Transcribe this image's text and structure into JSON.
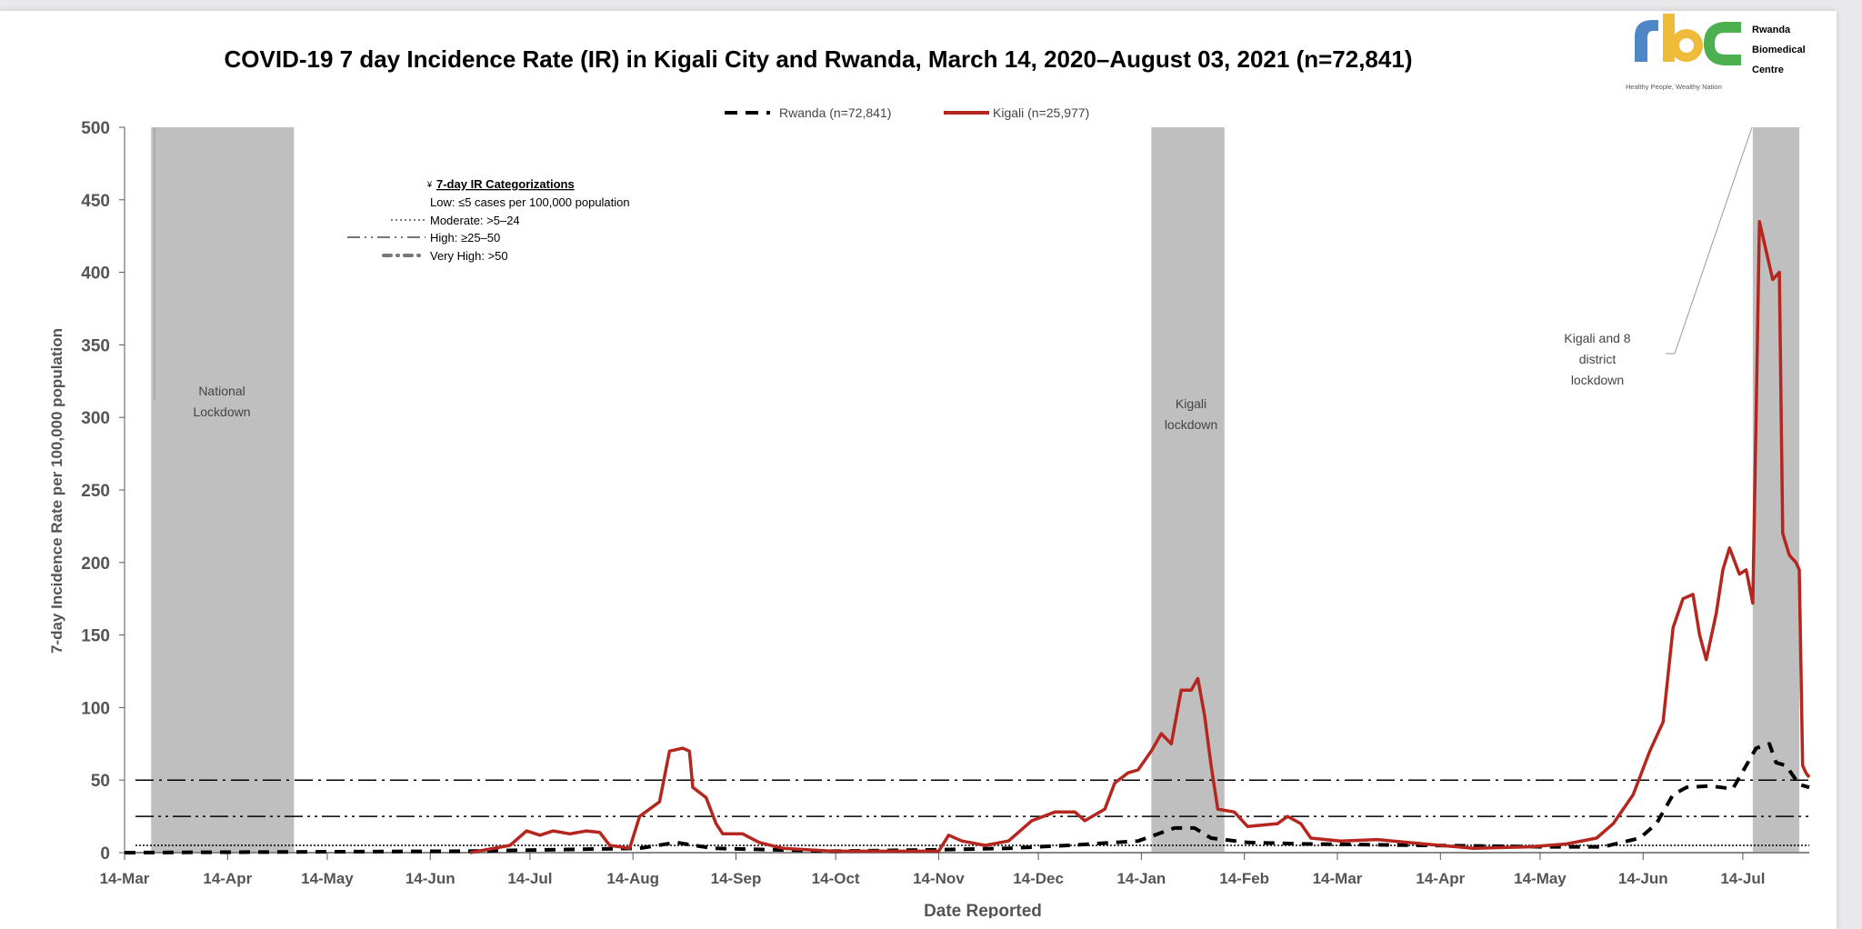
{
  "logo": {
    "letters": "rbc",
    "org_line1": "Rwanda",
    "org_line2": "Biomedical",
    "org_line3": "Centre",
    "tagline": "Healthy People, Wealthy Nation",
    "colors": {
      "r": "#4f86c6",
      "b": "#eebb3a",
      "c": "#4caf50"
    }
  },
  "chart_data": {
    "type": "line",
    "title": "COVID-19 7 day Incidence Rate (IR) in Kigali City and Rwanda, March 14, 2020–August 03, 2021 (n=72,841)",
    "xlabel": "Date Reported",
    "ylabel": "7-day Incidence Rate per 100,000 population",
    "x_units": "days since 14-Mar-2020",
    "xlim": [
      0,
      507
    ],
    "ylim": [
      0,
      500
    ],
    "yticks": [
      0,
      50,
      100,
      150,
      200,
      250,
      300,
      350,
      400,
      450,
      500
    ],
    "xticks": [
      {
        "label": "14-Mar",
        "day": 0
      },
      {
        "label": "14-Apr",
        "day": 31
      },
      {
        "label": "14-May",
        "day": 61
      },
      {
        "label": "14-Jun",
        "day": 92
      },
      {
        "label": "14-Jul",
        "day": 122
      },
      {
        "label": "14-Aug",
        "day": 153
      },
      {
        "label": "14-Sep",
        "day": 184
      },
      {
        "label": "14-Oct",
        "day": 214
      },
      {
        "label": "14-Nov",
        "day": 245
      },
      {
        "label": "14-Dec",
        "day": 275
      },
      {
        "label": "14-Jan",
        "day": 306
      },
      {
        "label": "14-Feb",
        "day": 337
      },
      {
        "label": "14-Mar",
        "day": 365
      },
      {
        "label": "14-Apr",
        "day": 396
      },
      {
        "label": "14-May",
        "day": 426
      },
      {
        "label": "14-Jun",
        "day": 457
      },
      {
        "label": "14-Jul",
        "day": 487
      }
    ],
    "legend": "top-center",
    "series": [
      {
        "name": "Rwanda (n=72,841)",
        "color": "#000000",
        "style": "dashed",
        "points": [
          [
            0,
            0
          ],
          [
            102,
            1
          ],
          [
            155,
            3
          ],
          [
            166,
            7
          ],
          [
            177,
            3
          ],
          [
            213,
            1
          ],
          [
            245,
            2
          ],
          [
            266,
            3
          ],
          [
            284,
            5
          ],
          [
            305,
            8
          ],
          [
            316,
            17
          ],
          [
            322,
            17
          ],
          [
            327,
            10
          ],
          [
            338,
            7
          ],
          [
            355,
            6
          ],
          [
            391,
            5
          ],
          [
            427,
            4
          ],
          [
            445,
            4
          ],
          [
            456,
            10
          ],
          [
            461,
            20
          ],
          [
            466,
            40
          ],
          [
            470,
            45
          ],
          [
            477,
            46
          ],
          [
            484,
            44
          ],
          [
            488,
            60
          ],
          [
            491,
            72
          ],
          [
            495,
            75
          ],
          [
            497,
            62
          ],
          [
            500,
            60
          ],
          [
            504,
            47
          ],
          [
            507,
            45
          ]
        ]
      },
      {
        "name": "Kigali (n=25,977)",
        "color": "#b5261e",
        "style": "solid",
        "points": [
          [
            104,
            0
          ],
          [
            116,
            5
          ],
          [
            121,
            15
          ],
          [
            125,
            12
          ],
          [
            129,
            15
          ],
          [
            134,
            13
          ],
          [
            139,
            15
          ],
          [
            143,
            14
          ],
          [
            146,
            5
          ],
          [
            152,
            3
          ],
          [
            155,
            25
          ],
          [
            161,
            35
          ],
          [
            164,
            70
          ],
          [
            168,
            72
          ],
          [
            170,
            70
          ],
          [
            171,
            45
          ],
          [
            175,
            38
          ],
          [
            178,
            20
          ],
          [
            180,
            13
          ],
          [
            186,
            13
          ],
          [
            191,
            7
          ],
          [
            198,
            3
          ],
          [
            213,
            1
          ],
          [
            234,
            1
          ],
          [
            245,
            1
          ],
          [
            248,
            12
          ],
          [
            252,
            8
          ],
          [
            259,
            5
          ],
          [
            266,
            8
          ],
          [
            273,
            22
          ],
          [
            280,
            28
          ],
          [
            286,
            28
          ],
          [
            289,
            22
          ],
          [
            295,
            30
          ],
          [
            298,
            48
          ],
          [
            302,
            55
          ],
          [
            305,
            57
          ],
          [
            309,
            70
          ],
          [
            312,
            82
          ],
          [
            315,
            75
          ],
          [
            318,
            112
          ],
          [
            321,
            112
          ],
          [
            323,
            120
          ],
          [
            325,
            95
          ],
          [
            327,
            60
          ],
          [
            329,
            30
          ],
          [
            334,
            28
          ],
          [
            338,
            18
          ],
          [
            347,
            20
          ],
          [
            350,
            25
          ],
          [
            354,
            20
          ],
          [
            357,
            10
          ],
          [
            366,
            8
          ],
          [
            377,
            9
          ],
          [
            391,
            6
          ],
          [
            406,
            3
          ],
          [
            423,
            4
          ],
          [
            434,
            6
          ],
          [
            443,
            10
          ],
          [
            448,
            20
          ],
          [
            454,
            40
          ],
          [
            459,
            70
          ],
          [
            463,
            90
          ],
          [
            466,
            155
          ],
          [
            469,
            175
          ],
          [
            472,
            178
          ],
          [
            474,
            150
          ],
          [
            476,
            133
          ],
          [
            479,
            165
          ],
          [
            481,
            195
          ],
          [
            483,
            210
          ],
          [
            486,
            192
          ],
          [
            488,
            195
          ],
          [
            490,
            172
          ],
          [
            491,
            300
          ],
          [
            492,
            435
          ],
          [
            494,
            415
          ],
          [
            496,
            395
          ],
          [
            498,
            400
          ],
          [
            499,
            220
          ],
          [
            501,
            205
          ],
          [
            503,
            200
          ],
          [
            504,
            195
          ],
          [
            505,
            60
          ],
          [
            506,
            55
          ],
          [
            507,
            52
          ]
        ]
      }
    ],
    "reference_lines": [
      {
        "value": 50,
        "style": "dash-dot"
      },
      {
        "value": 25,
        "style": "dash-dot-dot"
      },
      {
        "value": 5,
        "style": "dotted"
      }
    ],
    "shaded_periods": [
      {
        "label": "National Lockdown",
        "start_day": 8,
        "end_day": 51
      },
      {
        "label": "Kigali lockdown",
        "start_day": 309,
        "end_day": 331
      },
      {
        "label": "Kigali and 8 district lockdown",
        "start_day": 490,
        "end_day": 504
      }
    ],
    "annotations": {
      "national": [
        "National",
        "Lockdown"
      ],
      "kigali": [
        "Kigali",
        "lockdown"
      ],
      "district": [
        "Kigali and 8",
        "district",
        "lockdown"
      ]
    },
    "categorization": {
      "title": "7-day IR Categorizations",
      "marker": "¥",
      "low": "Low: ≤5 cases per 100,000 population",
      "moderate": "Moderate: >5–24",
      "high": "High: ≥25–50",
      "very_high": "Very High: >50"
    }
  }
}
